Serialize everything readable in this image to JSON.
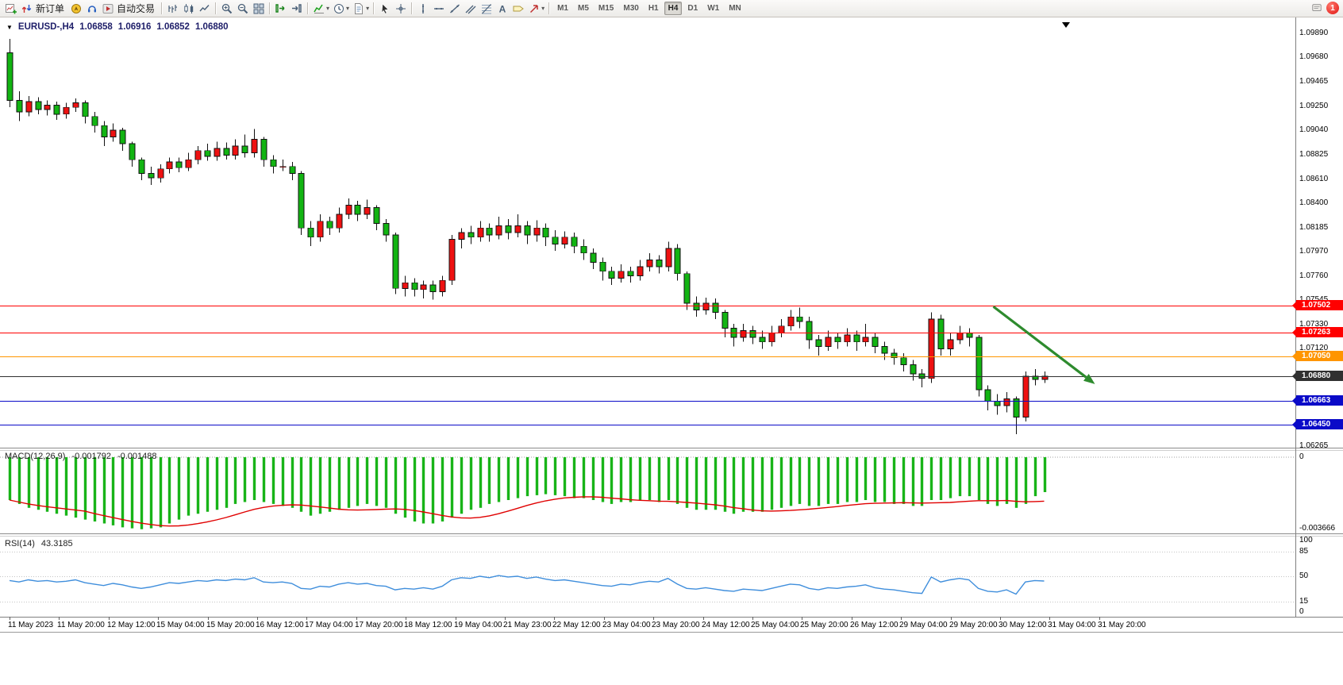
{
  "icons": {
    "collapse-triangle": "▼",
    "dropdown-caret": "▾"
  },
  "toolbar": {
    "notification_badge": "1",
    "active_timeframe": "H4",
    "timeframes": [
      "M1",
      "M5",
      "M15",
      "M30",
      "H1",
      "H4",
      "D1",
      "W1",
      "MN"
    ],
    "items": [
      {
        "name": "new-chart",
        "glyph": "chart-plus"
      },
      {
        "name": "new-order",
        "glyph": "order-arrows",
        "label": "新订单"
      },
      {
        "name": "navigator",
        "glyph": "compass"
      },
      {
        "name": "market",
        "glyph": "headset"
      },
      {
        "name": "autotrading",
        "glyph": "play",
        "label": "自动交易"
      },
      {
        "sep": true
      },
      {
        "name": "chart-bars",
        "glyph": "bars"
      },
      {
        "name": "chart-candles",
        "glyph": "candles"
      },
      {
        "name": "chart-line",
        "glyph": "line"
      },
      {
        "sep": true
      },
      {
        "name": "zoom-in",
        "glyph": "zoom-in"
      },
      {
        "name": "zoom-out",
        "glyph": "zoom-out"
      },
      {
        "name": "tile-windows",
        "glyph": "grid"
      },
      {
        "sep": true
      },
      {
        "name": "auto-scroll",
        "glyph": "autoscroll"
      },
      {
        "name": "chart-shift",
        "glyph": "shift"
      },
      {
        "sep": true
      },
      {
        "name": "indicators",
        "glyph": "indicator",
        "dropdown": true
      },
      {
        "name": "periods",
        "glyph": "clock",
        "dropdown": true
      },
      {
        "name": "templates",
        "glyph": "template",
        "dropdown": true
      },
      {
        "sep": true
      },
      {
        "name": "cursor",
        "glyph": "cursor"
      },
      {
        "name": "crosshair",
        "glyph": "crosshair"
      },
      {
        "sep": true
      },
      {
        "name": "vertical-line",
        "glyph": "vline"
      },
      {
        "name": "horizontal-line",
        "glyph": "hline"
      },
      {
        "name": "trendline",
        "glyph": "trend"
      },
      {
        "name": "equidistant-channel",
        "glyph": "channel"
      },
      {
        "name": "fibonacci-retracement",
        "glyph": "fibo"
      },
      {
        "name": "text",
        "glyph": "textA"
      },
      {
        "name": "text-label",
        "glyph": "tag"
      },
      {
        "name": "arrows",
        "glyph": "arrow",
        "dropdown": true
      },
      {
        "sep": true
      }
    ]
  },
  "chart": {
    "title": "EURUSD-,H4",
    "open": "1.06858",
    "high": "1.06916",
    "low": "1.06852",
    "close": "1.06880"
  },
  "chart_data": {
    "type": "candlestick",
    "symbol": "EURUSD-",
    "timeframe": "H4",
    "ylim": [
      1.06265,
      1.0989
    ],
    "colors": {
      "up_candle": "#ee1111",
      "down_candle": "#12b412",
      "macd_hist": "#18b418",
      "macd_signal": "#e00000",
      "rsi_line": "#3f8edc",
      "arrow_green": "#2e8b2e"
    },
    "price_axis_labels": [
      "1.09890",
      "1.09680",
      "1.09465",
      "1.09250",
      "1.09040",
      "1.08825",
      "1.08610",
      "1.08400",
      "1.08185",
      "1.07970",
      "1.07760",
      "1.07545",
      "1.07330",
      "1.07120",
      "1.06265"
    ],
    "hlines": [
      {
        "price": 1.07502,
        "color": "#ff0000",
        "label": "1.07502"
      },
      {
        "price": 1.07263,
        "color": "#ff0000",
        "label": "1.07263"
      },
      {
        "price": 1.0705,
        "color": "#ff9500",
        "label": "1.07050"
      },
      {
        "price": 1.0688,
        "color": "#303030",
        "label": "1.06880",
        "style": "current"
      },
      {
        "price": 1.06663,
        "color": "#0a0ac8",
        "label": "1.06663"
      },
      {
        "price": 1.0645,
        "color": "#0a0ac8",
        "label": "1.06450"
      }
    ],
    "candles": [
      [
        1.0972,
        1.0984,
        1.0924,
        1.093
      ],
      [
        1.093,
        1.0938,
        1.0912,
        1.092
      ],
      [
        1.092,
        1.0934,
        1.0916,
        1.0929
      ],
      [
        1.0929,
        1.0933,
        1.0918,
        1.0922
      ],
      [
        1.0922,
        1.093,
        1.0917,
        1.0926
      ],
      [
        1.0926,
        1.0929,
        1.0913,
        1.0918
      ],
      [
        1.0918,
        1.0928,
        1.0914,
        1.0924
      ],
      [
        1.0924,
        1.0932,
        1.092,
        1.0928
      ],
      [
        1.0928,
        1.093,
        1.091,
        1.0916
      ],
      [
        1.0916,
        1.092,
        1.0902,
        1.0908
      ],
      [
        1.0908,
        1.0912,
        1.089,
        1.0898
      ],
      [
        1.0898,
        1.091,
        1.0894,
        1.0904
      ],
      [
        1.0904,
        1.0906,
        1.0886,
        1.0892
      ],
      [
        1.0892,
        1.0894,
        1.0872,
        1.0878
      ],
      [
        1.0878,
        1.088,
        1.086,
        1.0866
      ],
      [
        1.0866,
        1.0872,
        1.0856,
        1.0862
      ],
      [
        1.0862,
        1.0874,
        1.0858,
        1.087
      ],
      [
        1.087,
        1.088,
        1.0866,
        1.0876
      ],
      [
        1.0876,
        1.088,
        1.0867,
        1.0871
      ],
      [
        1.0871,
        1.0884,
        1.0868,
        1.0878
      ],
      [
        1.0878,
        1.089,
        1.0874,
        1.0886
      ],
      [
        1.0886,
        1.0892,
        1.0877,
        1.0881
      ],
      [
        1.0881,
        1.0894,
        1.0877,
        1.0888
      ],
      [
        1.0888,
        1.0893,
        1.0878,
        1.0882
      ],
      [
        1.0882,
        1.0896,
        1.0878,
        1.089
      ],
      [
        1.089,
        1.09,
        1.088,
        1.0884
      ],
      [
        1.0884,
        1.0905,
        1.088,
        1.0896
      ],
      [
        1.0896,
        1.0898,
        1.0872,
        1.0878
      ],
      [
        1.0878,
        1.0882,
        1.0866,
        1.0872
      ],
      [
        1.0872,
        1.0878,
        1.0868,
        1.0872
      ],
      [
        1.0872,
        1.0876,
        1.086,
        1.0866
      ],
      [
        1.0866,
        1.0868,
        1.0812,
        1.0818
      ],
      [
        1.0818,
        1.0824,
        1.0802,
        1.081
      ],
      [
        1.081,
        1.083,
        1.0806,
        1.0824
      ],
      [
        1.0824,
        1.0828,
        1.0812,
        1.0818
      ],
      [
        1.0818,
        1.0836,
        1.0814,
        1.083
      ],
      [
        1.083,
        1.0844,
        1.0826,
        1.0838
      ],
      [
        1.0838,
        1.0842,
        1.0824,
        1.083
      ],
      [
        1.083,
        1.0843,
        1.0826,
        1.0836
      ],
      [
        1.0836,
        1.0838,
        1.0816,
        1.0822
      ],
      [
        1.0822,
        1.0826,
        1.0806,
        1.0812
      ],
      [
        1.0812,
        1.0814,
        1.076,
        1.0765
      ],
      [
        1.0765,
        1.0776,
        1.0758,
        1.077
      ],
      [
        1.077,
        1.0774,
        1.0758,
        1.0764
      ],
      [
        1.0764,
        1.0772,
        1.0756,
        1.0768
      ],
      [
        1.0768,
        1.0772,
        1.0755,
        1.0762
      ],
      [
        1.0762,
        1.0776,
        1.0758,
        1.0772
      ],
      [
        1.0772,
        1.0812,
        1.0768,
        1.0808
      ],
      [
        1.0808,
        1.0818,
        1.08,
        1.0814
      ],
      [
        1.0814,
        1.082,
        1.0804,
        1.081
      ],
      [
        1.081,
        1.0824,
        1.0806,
        1.0818
      ],
      [
        1.0818,
        1.0822,
        1.0806,
        1.0812
      ],
      [
        1.0812,
        1.0828,
        1.0808,
        1.082
      ],
      [
        1.082,
        1.0826,
        1.0808,
        1.0814
      ],
      [
        1.0814,
        1.083,
        1.081,
        1.082
      ],
      [
        1.082,
        1.0824,
        1.0804,
        1.0812
      ],
      [
        1.0812,
        1.0825,
        1.0806,
        1.0818
      ],
      [
        1.0818,
        1.0822,
        1.0802,
        1.081
      ],
      [
        1.081,
        1.0816,
        1.0798,
        1.0804
      ],
      [
        1.0804,
        1.0815,
        1.08,
        1.081
      ],
      [
        1.081,
        1.0814,
        1.0796,
        1.0802
      ],
      [
        1.0802,
        1.0808,
        1.079,
        1.0796
      ],
      [
        1.0796,
        1.08,
        1.0782,
        1.0788
      ],
      [
        1.0788,
        1.0792,
        1.0772,
        1.078
      ],
      [
        1.078,
        1.0784,
        1.0768,
        1.0774
      ],
      [
        1.0774,
        1.0786,
        1.077,
        1.078
      ],
      [
        1.078,
        1.0784,
        1.077,
        1.0776
      ],
      [
        1.0776,
        1.079,
        1.0772,
        1.0784
      ],
      [
        1.0784,
        1.0796,
        1.078,
        1.079
      ],
      [
        1.079,
        1.0794,
        1.0778,
        1.0784
      ],
      [
        1.0784,
        1.0806,
        1.078,
        1.08
      ],
      [
        1.08,
        1.0804,
        1.0772,
        1.0778
      ],
      [
        1.0778,
        1.078,
        1.0746,
        1.0752
      ],
      [
        1.0752,
        1.0758,
        1.074,
        1.0746
      ],
      [
        1.0746,
        1.0757,
        1.0742,
        1.0752
      ],
      [
        1.0752,
        1.0756,
        1.0738,
        1.0744
      ],
      [
        1.0744,
        1.0746,
        1.0722,
        1.073
      ],
      [
        1.073,
        1.0734,
        1.0714,
        1.0722
      ],
      [
        1.0722,
        1.0734,
        1.0718,
        1.0728
      ],
      [
        1.0728,
        1.0732,
        1.0716,
        1.0722
      ],
      [
        1.0722,
        1.0728,
        1.0712,
        1.0718
      ],
      [
        1.0718,
        1.0732,
        1.0714,
        1.0726
      ],
      [
        1.0726,
        1.0738,
        1.0722,
        1.0732
      ],
      [
        1.0732,
        1.0746,
        1.0728,
        1.074
      ],
      [
        1.074,
        1.0748,
        1.073,
        1.0736
      ],
      [
        1.0736,
        1.074,
        1.0712,
        1.072
      ],
      [
        1.072,
        1.0724,
        1.0706,
        1.0714
      ],
      [
        1.0714,
        1.0728,
        1.071,
        1.0722
      ],
      [
        1.0722,
        1.0726,
        1.0712,
        1.0718
      ],
      [
        1.0718,
        1.073,
        1.0714,
        1.0724
      ],
      [
        1.0724,
        1.0728,
        1.071,
        1.0718
      ],
      [
        1.0718,
        1.0734,
        1.0714,
        1.0722
      ],
      [
        1.0722,
        1.0726,
        1.0708,
        1.0714
      ],
      [
        1.0714,
        1.0718,
        1.0702,
        1.0708
      ],
      [
        1.0708,
        1.0712,
        1.0698,
        1.0704
      ],
      [
        1.0704,
        1.0708,
        1.0692,
        1.0698
      ],
      [
        1.0698,
        1.0702,
        1.0684,
        1.069
      ],
      [
        1.069,
        1.0694,
        1.0678,
        1.0686
      ],
      [
        1.0686,
        1.0744,
        1.0682,
        1.0738
      ],
      [
        1.0738,
        1.0742,
        1.0706,
        1.0712
      ],
      [
        1.0712,
        1.0726,
        1.0706,
        1.072
      ],
      [
        1.072,
        1.0732,
        1.0716,
        1.0726
      ],
      [
        1.0726,
        1.073,
        1.0714,
        1.0722
      ],
      [
        1.0722,
        1.0724,
        1.067,
        1.0676
      ],
      [
        1.0676,
        1.068,
        1.0658,
        1.0666
      ],
      [
        1.0666,
        1.0672,
        1.0654,
        1.0662
      ],
      [
        1.0662,
        1.0674,
        1.0656,
        1.0668
      ],
      [
        1.0668,
        1.067,
        1.0637,
        1.0652
      ],
      [
        1.0652,
        1.0692,
        1.0648,
        1.0688
      ],
      [
        1.0688,
        1.0694,
        1.068,
        1.0685
      ],
      [
        1.0685,
        1.0692,
        1.0682,
        1.0688
      ]
    ],
    "annotations": {
      "trend_arrow": {
        "bar1": 104.6,
        "price1": 1.0749,
        "bar2": 115.4,
        "price2": 1.0681
      }
    },
    "macd_panel": {
      "label": "MACD(12,26,9)",
      "value_main": "-0.001792",
      "value_signal": "-0.001488",
      "scale_labels": [
        {
          "text": "0",
          "value": 0
        },
        {
          "text": "-0.003666",
          "value": -0.003666
        }
      ],
      "hist": [
        -0.0022,
        -0.0024,
        -0.0026,
        -0.0027,
        -0.0028,
        -0.0029,
        -0.003,
        -0.0031,
        -0.0032,
        -0.0033,
        -0.0034,
        -0.0035,
        -0.0036,
        -0.00365,
        -0.0037,
        -0.00365,
        -0.0036,
        -0.0034,
        -0.0032,
        -0.003,
        -0.0029,
        -0.0028,
        -0.0027,
        -0.0026,
        -0.0024,
        -0.0023,
        -0.0022,
        -0.0023,
        -0.0024,
        -0.0025,
        -0.0026,
        -0.0028,
        -0.003,
        -0.0029,
        -0.0028,
        -0.0027,
        -0.0026,
        -0.0025,
        -0.0024,
        -0.0025,
        -0.0026,
        -0.0029,
        -0.0031,
        -0.0033,
        -0.0034,
        -0.0034,
        -0.0033,
        -0.0031,
        -0.0029,
        -0.0027,
        -0.0026,
        -0.0024,
        -0.0023,
        -0.0022,
        -0.0021,
        -0.002,
        -0.00195,
        -0.0019,
        -0.00195,
        -0.002,
        -0.0021,
        -0.0021,
        -0.0022,
        -0.0023,
        -0.0024,
        -0.0023,
        -0.0023,
        -0.0022,
        -0.0022,
        -0.0023,
        -0.0022,
        -0.0024,
        -0.0026,
        -0.0027,
        -0.0027,
        -0.0027,
        -0.0028,
        -0.0029,
        -0.0028,
        -0.0028,
        -0.0028,
        -0.0027,
        -0.0026,
        -0.0025,
        -0.0024,
        -0.0025,
        -0.0025,
        -0.0024,
        -0.0024,
        -0.0023,
        -0.0023,
        -0.0022,
        -0.0023,
        -0.0023,
        -0.0024,
        -0.0024,
        -0.0025,
        -0.0025,
        -0.0022,
        -0.0022,
        -0.0021,
        -0.002,
        -0.002,
        -0.0022,
        -0.0024,
        -0.0025,
        -0.0024,
        -0.0026,
        -0.0024,
        -0.002,
        -0.001792
      ]
    },
    "rsi_panel": {
      "label": "RSI(14)",
      "value": "43.3185",
      "levels": [
        85,
        50,
        15
      ],
      "scale_labels": [
        "100",
        "85",
        "50",
        "15",
        "0"
      ],
      "values": [
        44,
        42,
        45,
        43,
        44,
        42,
        43,
        45,
        41,
        39,
        37,
        40,
        38,
        35,
        33,
        35,
        38,
        41,
        40,
        42,
        44,
        43,
        45,
        44,
        46,
        45,
        48,
        42,
        41,
        42,
        40,
        33,
        32,
        36,
        35,
        39,
        41,
        39,
        40,
        37,
        36,
        31,
        33,
        32,
        34,
        32,
        36,
        45,
        48,
        47,
        50,
        48,
        51,
        49,
        50,
        47,
        49,
        46,
        44,
        45,
        43,
        41,
        39,
        37,
        36,
        39,
        38,
        41,
        43,
        42,
        47,
        39,
        33,
        32,
        34,
        32,
        30,
        29,
        32,
        31,
        30,
        33,
        36,
        39,
        38,
        33,
        31,
        34,
        33,
        35,
        36,
        38,
        34,
        32,
        31,
        29,
        27,
        26,
        49,
        42,
        45,
        47,
        45,
        33,
        29,
        28,
        31,
        25,
        42,
        44,
        43.3185
      ]
    },
    "x_axis": {
      "labels": [
        "11 May 2023",
        "11 May 20:00",
        "12 May 12:00",
        "15 May 04:00",
        "15 May 20:00",
        "16 May 12:00",
        "17 May 04:00",
        "17 May 20:00",
        "18 May 12:00",
        "19 May 04:00",
        "21 May 23:00",
        "22 May 12:00",
        "23 May 04:00",
        "23 May 20:00",
        "24 May 12:00",
        "25 May 04:00",
        "25 May 20:00",
        "26 May 12:00",
        "29 May 04:00",
        "29 May 20:00",
        "30 May 12:00",
        "31 May 04:00",
        "31 May 20:00"
      ]
    }
  }
}
